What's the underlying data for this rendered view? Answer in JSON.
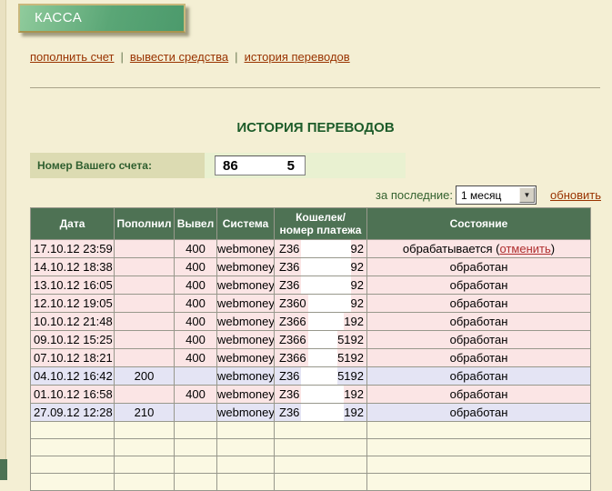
{
  "banner": {
    "label": "КАССА"
  },
  "nav": {
    "links": [
      {
        "label": "пополнить счет"
      },
      {
        "label": "вывести средства"
      },
      {
        "label": "история переводов"
      }
    ],
    "separator": "|"
  },
  "history": {
    "title": "ИСТОРИЯ ПЕРЕВОДОВ",
    "account": {
      "label": "Номер Вашего счета:",
      "value_visible_prefix": "86",
      "value_visible_suffix": "5"
    },
    "filter": {
      "label": "за последние:",
      "selected": "1 месяц",
      "refresh": "обновить"
    }
  },
  "table": {
    "headers": {
      "date": "Дата",
      "deposit": "Пополнил",
      "withdraw": "Вывел",
      "system": "Система",
      "wallet": "Кошелек/\nномер платежа",
      "status": "Состояние"
    },
    "rows": [
      {
        "date": "17.10.12 23:59",
        "deposit": "",
        "withdraw": "400",
        "system": "webmoney",
        "wallet_prefix": "Z36",
        "wallet_suffix": "92",
        "status": "обрабатывается",
        "status_link": "отменить",
        "kind": "withdraw"
      },
      {
        "date": "14.10.12 18:38",
        "deposit": "",
        "withdraw": "400",
        "system": "webmoney",
        "wallet_prefix": "Z36",
        "wallet_suffix": "92",
        "status": "обработан",
        "kind": "withdraw"
      },
      {
        "date": "13.10.12 16:05",
        "deposit": "",
        "withdraw": "400",
        "system": "webmoney",
        "wallet_prefix": "Z36",
        "wallet_suffix": "92",
        "status": "обработан",
        "kind": "withdraw"
      },
      {
        "date": "12.10.12 19:05",
        "deposit": "",
        "withdraw": "400",
        "system": "webmoney",
        "wallet_prefix": "Z360",
        "wallet_suffix": "92",
        "status": "обработан",
        "kind": "withdraw"
      },
      {
        "date": "10.10.12 21:48",
        "deposit": "",
        "withdraw": "400",
        "system": "webmoney",
        "wallet_prefix": "Z366",
        "wallet_suffix": "192",
        "status": "обработан",
        "kind": "withdraw"
      },
      {
        "date": "09.10.12 15:25",
        "deposit": "",
        "withdraw": "400",
        "system": "webmoney",
        "wallet_prefix": "Z366",
        "wallet_suffix": "5192",
        "status": "обработан",
        "kind": "withdraw"
      },
      {
        "date": "07.10.12 18:21",
        "deposit": "",
        "withdraw": "400",
        "system": "webmoney",
        "wallet_prefix": "Z366",
        "wallet_suffix": "5192",
        "status": "обработан",
        "kind": "withdraw"
      },
      {
        "date": "04.10.12 16:42",
        "deposit": "200",
        "withdraw": "",
        "system": "webmoney",
        "wallet_prefix": "Z36",
        "wallet_suffix": "5192",
        "status": "обработан",
        "kind": "deposit"
      },
      {
        "date": "01.10.12 16:58",
        "deposit": "",
        "withdraw": "400",
        "system": "webmoney",
        "wallet_prefix": "Z36",
        "wallet_suffix": "192",
        "status": "обработан",
        "kind": "withdraw"
      },
      {
        "date": "27.09.12 12:28",
        "deposit": "210",
        "withdraw": "",
        "system": "webmoney",
        "wallet_prefix": "Z36",
        "wallet_suffix": "192",
        "status": "обработан",
        "kind": "deposit"
      }
    ],
    "empty_row_count": 4
  },
  "colors": {
    "page_bg": "#f4efd4",
    "banner_green_light": "#90cb9c",
    "banner_green_dark": "#4c9a6c",
    "banner_border_gold": "#c9b87c",
    "link_brown": "#993300",
    "title_green": "#1d5c2a",
    "header_green": "#4e7254",
    "row_pink": "#fbe5e5",
    "row_lavender": "#e4e4f4",
    "row_empty": "#fbf9e3",
    "account_label_bg": "#dcdbb2",
    "account_value_bg": "#e9f1d1",
    "cancel_link_red": "#b03030"
  }
}
